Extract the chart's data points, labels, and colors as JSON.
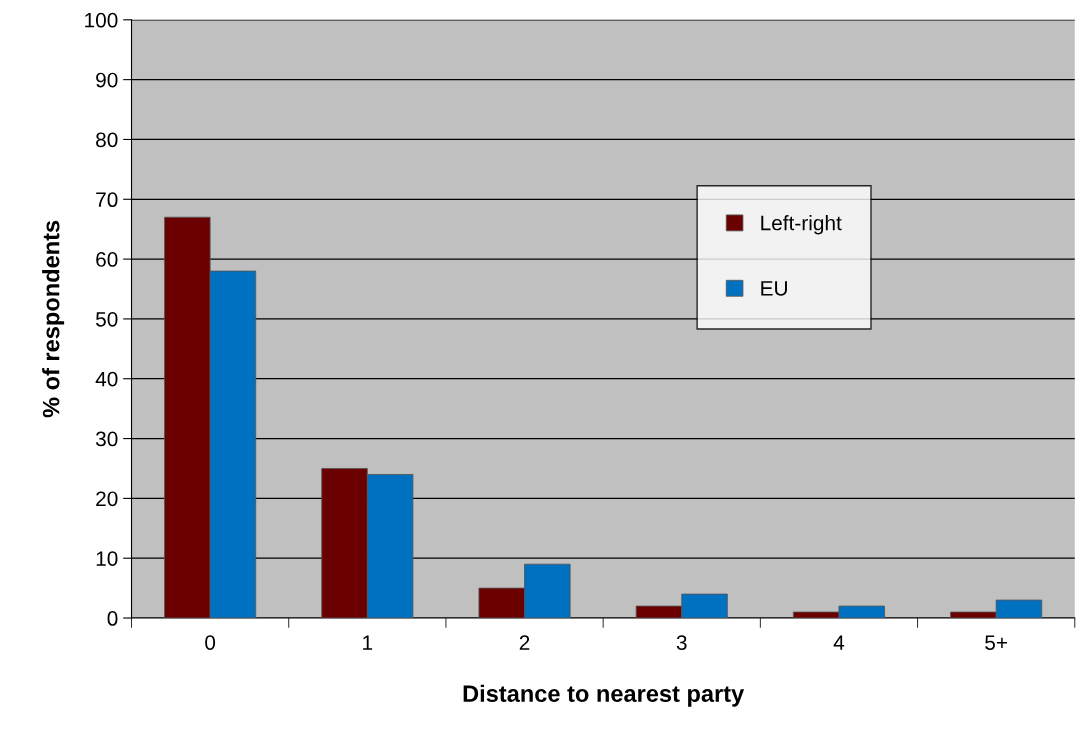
{
  "chart_data": {
    "type": "bar",
    "xlabel": "Distance to nearest party",
    "ylabel": "% of respondents",
    "categories": [
      "0",
      "1",
      "2",
      "3",
      "4",
      "5+"
    ],
    "series": [
      {
        "name": "Left-right",
        "color": "#6b0000",
        "values": [
          67,
          25,
          5,
          2,
          1,
          1
        ]
      },
      {
        "name": "EU",
        "color": "#0070c0",
        "values": [
          58,
          24,
          9,
          4,
          2,
          3
        ]
      }
    ],
    "ylim": [
      0,
      100
    ],
    "yticks": [
      0,
      10,
      20,
      30,
      40,
      50,
      60,
      70,
      80,
      90,
      100
    ],
    "grid": "y",
    "legend": "top right"
  }
}
